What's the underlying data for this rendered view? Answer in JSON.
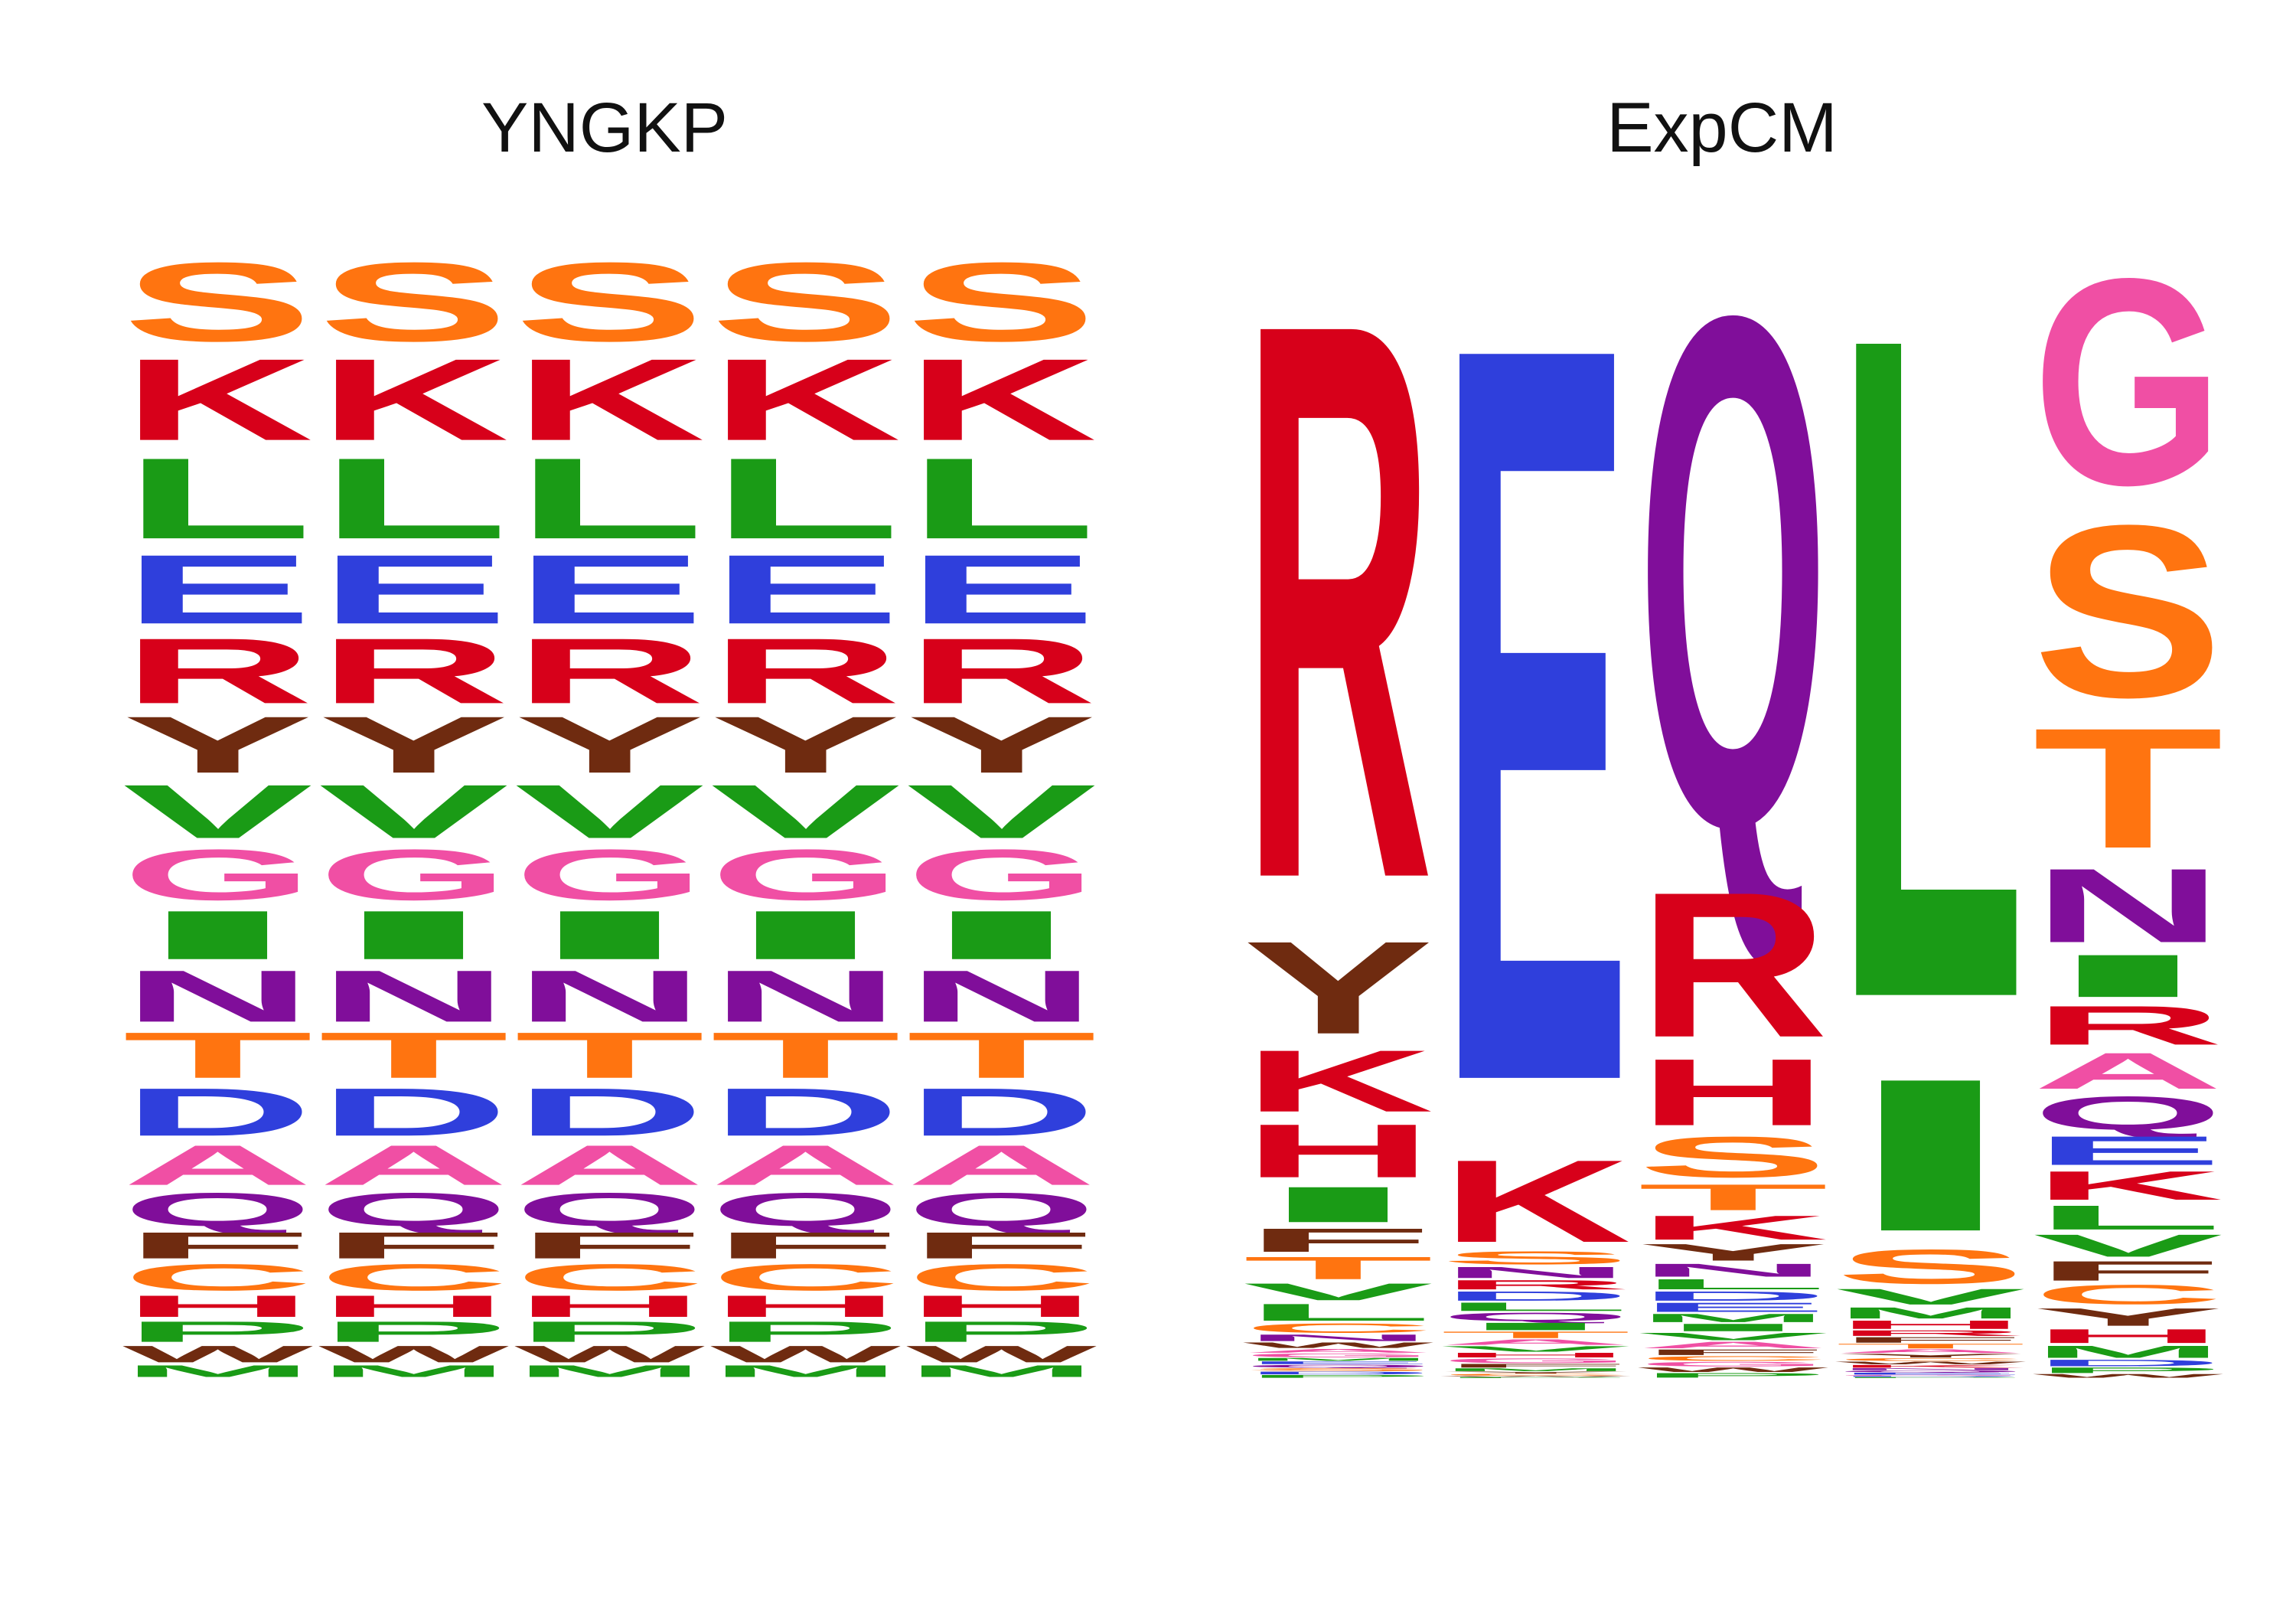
{
  "colors": {
    "A": "#f04fa4",
    "C": "#ff7410",
    "D": "#2f3fdc",
    "E": "#2f3fdc",
    "F": "#6f2b10",
    "G": "#f04fa4",
    "H": "#d7001a",
    "I": "#1a9b16",
    "K": "#d7001a",
    "L": "#1a9b16",
    "M": "#1a9b16",
    "N": "#800e9a",
    "P": "#1a9b16",
    "Q": "#800e9a",
    "R": "#d7001a",
    "S": "#ff7410",
    "T": "#ff7410",
    "V": "#1a9b16",
    "W": "#6f2b10",
    "Y": "#6f2b10"
  },
  "chart_data": [
    {
      "type": "sequence-logo",
      "title": "YNGKP",
      "sites": [
        1,
        2,
        3,
        4,
        5
      ],
      "stack_order": [
        "S",
        "K",
        "L",
        "E",
        "R",
        "Y",
        "V",
        "G",
        "I",
        "N",
        "T",
        "D",
        "A",
        "Q",
        "F",
        "C",
        "H",
        "P",
        "W",
        "M"
      ],
      "frequencies": {
        "S": 0.081,
        "K": 0.084,
        "L": 0.083,
        "E": 0.071,
        "R": 0.067,
        "Y": 0.058,
        "V": 0.055,
        "G": 0.052,
        "I": 0.05,
        "N": 0.053,
        "T": 0.047,
        "D": 0.049,
        "A": 0.041,
        "Q": 0.034,
        "F": 0.027,
        "C": 0.027,
        "H": 0.022,
        "P": 0.021,
        "W": 0.017,
        "M": 0.012
      }
    },
    {
      "type": "sequence-logo",
      "title": "ExpCM",
      "sites": [
        1,
        2,
        3,
        4,
        5
      ],
      "stacks": [
        {
          "site": 1,
          "letters": [
            {
              "aa": "R",
              "p": 0.595
            },
            {
              "aa": "Y",
              "p": 0.099
            },
            {
              "aa": "K",
              "p": 0.066
            },
            {
              "aa": "H",
              "p": 0.057
            },
            {
              "aa": "I",
              "p": 0.038
            },
            {
              "aa": "F",
              "p": 0.025
            },
            {
              "aa": "T",
              "p": 0.024
            },
            {
              "aa": "V",
              "p": 0.018
            },
            {
              "aa": "L",
              "p": 0.018
            },
            {
              "aa": "C",
              "p": 0.01
            },
            {
              "aa": "N",
              "p": 0.007
            },
            {
              "aa": "W",
              "p": 0.006
            },
            {
              "aa": "A",
              "p": 0.004
            },
            {
              "aa": "G",
              "p": 0.004
            },
            {
              "aa": "M",
              "p": 0.003
            },
            {
              "aa": "E",
              "p": 0.003
            },
            {
              "aa": "Q",
              "p": 0.003
            },
            {
              "aa": "S",
              "p": 0.003
            },
            {
              "aa": "D",
              "p": 0.003
            },
            {
              "aa": "P",
              "p": 0.003
            }
          ]
        },
        {
          "site": 2,
          "letters": [
            {
              "aa": "E",
              "p": 0.797
            },
            {
              "aa": "K",
              "p": 0.089
            },
            {
              "aa": "S",
              "p": 0.014
            },
            {
              "aa": "N",
              "p": 0.012
            },
            {
              "aa": "R",
              "p": 0.01
            },
            {
              "aa": "D",
              "p": 0.01
            },
            {
              "aa": "L",
              "p": 0.009
            },
            {
              "aa": "Q",
              "p": 0.009
            },
            {
              "aa": "I",
              "p": 0.008
            },
            {
              "aa": "T",
              "p": 0.007
            },
            {
              "aa": "A",
              "p": 0.006
            },
            {
              "aa": "V",
              "p": 0.006
            },
            {
              "aa": "H",
              "p": 0.005
            },
            {
              "aa": "G",
              "p": 0.005
            },
            {
              "aa": "F",
              "p": 0.004
            },
            {
              "aa": "M",
              "p": 0.003
            },
            {
              "aa": "Y",
              "p": 0.002
            },
            {
              "aa": "C",
              "p": 0.002
            },
            {
              "aa": "W",
              "p": 0.001
            },
            {
              "aa": "P",
              "p": 0.001
            }
          ]
        },
        {
          "site": 3,
          "letters": [
            {
              "aa": "Q",
              "p": 0.552
            },
            {
              "aa": "R",
              "p": 0.157
            },
            {
              "aa": "H",
              "p": 0.072
            },
            {
              "aa": "S",
              "p": 0.044
            },
            {
              "aa": "T",
              "p": 0.028
            },
            {
              "aa": "K",
              "p": 0.026
            },
            {
              "aa": "Y",
              "p": 0.018
            },
            {
              "aa": "N",
              "p": 0.014
            },
            {
              "aa": "L",
              "p": 0.011
            },
            {
              "aa": "D",
              "p": 0.01
            },
            {
              "aa": "E",
              "p": 0.01
            },
            {
              "aa": "M",
              "p": 0.009
            },
            {
              "aa": "I",
              "p": 0.008
            },
            {
              "aa": "V",
              "p": 0.008
            },
            {
              "aa": "A",
              "p": 0.007
            },
            {
              "aa": "F",
              "p": 0.006
            },
            {
              "aa": "C",
              "p": 0.005
            },
            {
              "aa": "G",
              "p": 0.005
            },
            {
              "aa": "W",
              "p": 0.005
            },
            {
              "aa": "P",
              "p": 0.005
            }
          ]
        },
        {
          "site": 4,
          "letters": [
            {
              "aa": "L",
              "p": 0.717
            },
            {
              "aa": "I",
              "p": 0.165
            },
            {
              "aa": "S",
              "p": 0.037
            },
            {
              "aa": "V",
              "p": 0.017
            },
            {
              "aa": "M",
              "p": 0.012
            },
            {
              "aa": "H",
              "p": 0.009
            },
            {
              "aa": "R",
              "p": 0.006
            },
            {
              "aa": "F",
              "p": 0.006
            },
            {
              "aa": "T",
              "p": 0.005
            },
            {
              "aa": "A",
              "p": 0.004
            },
            {
              "aa": "Y",
              "p": 0.004
            },
            {
              "aa": "C",
              "p": 0.003
            },
            {
              "aa": "W",
              "p": 0.003
            },
            {
              "aa": "K",
              "p": 0.003
            },
            {
              "aa": "N",
              "p": 0.002
            },
            {
              "aa": "Q",
              "p": 0.002
            },
            {
              "aa": "E",
              "p": 0.002
            },
            {
              "aa": "G",
              "p": 0.001
            },
            {
              "aa": "D",
              "p": 0.001
            },
            {
              "aa": "P",
              "p": 0.001
            }
          ]
        },
        {
          "site": 5,
          "letters": [
            {
              "aa": "G",
              "p": 0.223
            },
            {
              "aa": "S",
              "p": 0.186
            },
            {
              "aa": "T",
              "p": 0.13
            },
            {
              "aa": "N",
              "p": 0.08
            },
            {
              "aa": "I",
              "p": 0.046
            },
            {
              "aa": "R",
              "p": 0.042
            },
            {
              "aa": "A",
              "p": 0.039
            },
            {
              "aa": "Q",
              "p": 0.036
            },
            {
              "aa": "E",
              "p": 0.031
            },
            {
              "aa": "K",
              "p": 0.031
            },
            {
              "aa": "L",
              "p": 0.026
            },
            {
              "aa": "V",
              "p": 0.024
            },
            {
              "aa": "F",
              "p": 0.021
            },
            {
              "aa": "C",
              "p": 0.021
            },
            {
              "aa": "Y",
              "p": 0.019
            },
            {
              "aa": "H",
              "p": 0.015
            },
            {
              "aa": "M",
              "p": 0.013
            },
            {
              "aa": "D",
              "p": 0.007
            },
            {
              "aa": "P",
              "p": 0.006
            },
            {
              "aa": "W",
              "p": 0.004
            }
          ]
        }
      ]
    }
  ]
}
